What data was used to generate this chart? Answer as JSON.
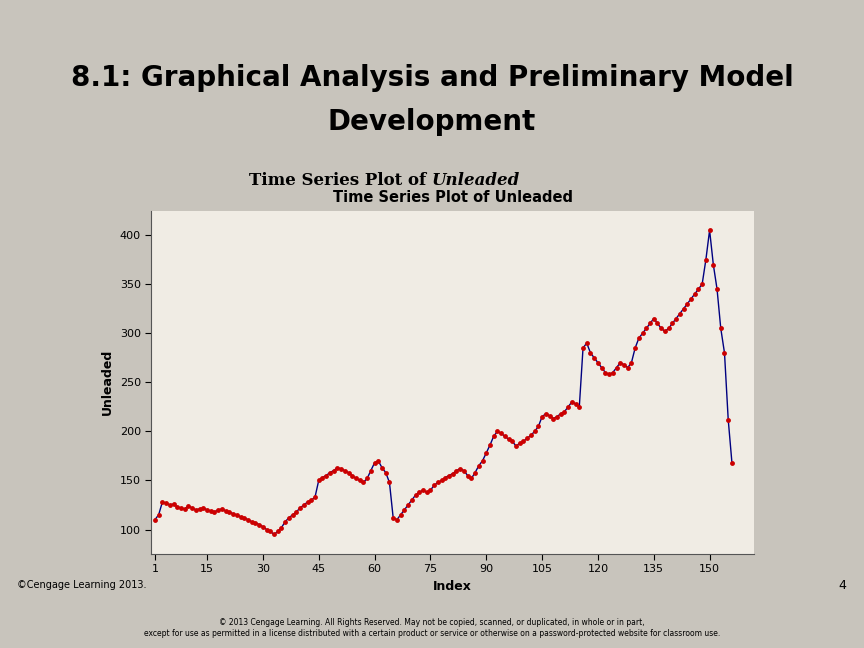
{
  "title_bg": "#7a9fa8",
  "title_text_line1": "8.1: Graphical Analysis and Preliminary Model",
  "title_text_line2": "Development",
  "title_color": "#000000",
  "yellow_bar_color": "#dede96",
  "slide_title_fontsize": 20,
  "outer_bg": "#c8c4bc",
  "chart_outer_bg": "#d8d4cc",
  "inner_bg": "#f0ece4",
  "chart_title": "Time Series Plot of Unleaded",
  "chart_title_fontsize": 10.5,
  "xlabel": "Index",
  "ylabel": "Unleaded",
  "line_color": "#000080",
  "marker_color": "#cc0000",
  "marker_size": 3.5,
  "line_width": 1.0,
  "ylim": [
    75,
    425
  ],
  "xlim": [
    0,
    162
  ],
  "yticks": [
    100,
    150,
    200,
    250,
    300,
    350,
    400
  ],
  "xticks": [
    1,
    15,
    30,
    45,
    60,
    75,
    90,
    105,
    120,
    135,
    150
  ],
  "cengage_text": "©Cengage Learning 2013.",
  "page_number": "4",
  "footer_text": "© 2013 Cengage Learning. All Rights Reserved. May not be copied, scanned, or duplicated, in whole or in part,\nexcept for use as permitted in a license distributed with a certain product or service or otherwise on a password-protected website for classroom use.",
  "values": [
    110,
    115,
    128,
    127,
    125,
    126,
    123,
    122,
    121,
    124,
    122,
    120,
    121,
    122,
    120,
    119,
    118,
    120,
    121,
    119,
    118,
    116,
    115,
    113,
    112,
    110,
    108,
    107,
    105,
    103,
    100,
    98,
    95,
    98,
    102,
    108,
    112,
    115,
    118,
    122,
    125,
    128,
    130,
    133,
    150,
    153,
    155,
    158,
    160,
    163,
    162,
    160,
    158,
    155,
    152,
    150,
    148,
    152,
    160,
    168,
    170,
    163,
    158,
    148,
    112,
    110,
    115,
    120,
    125,
    130,
    135,
    138,
    140,
    138,
    140,
    145,
    148,
    150,
    153,
    155,
    157,
    160,
    162,
    160,
    155,
    152,
    158,
    165,
    170,
    178,
    186,
    195,
    200,
    198,
    195,
    192,
    190,
    185,
    188,
    190,
    193,
    196,
    200,
    205,
    215,
    218,
    216,
    213,
    215,
    218,
    220,
    225,
    230,
    228,
    225,
    285,
    290,
    280,
    275,
    270,
    265,
    260,
    258,
    260,
    265,
    270,
    268,
    265,
    270,
    285,
    295,
    300,
    305,
    310,
    315,
    310,
    305,
    302,
    305,
    310,
    315,
    320,
    325,
    330,
    335,
    340,
    345,
    350,
    375,
    405,
    370,
    345,
    305,
    280,
    212,
    168
  ]
}
